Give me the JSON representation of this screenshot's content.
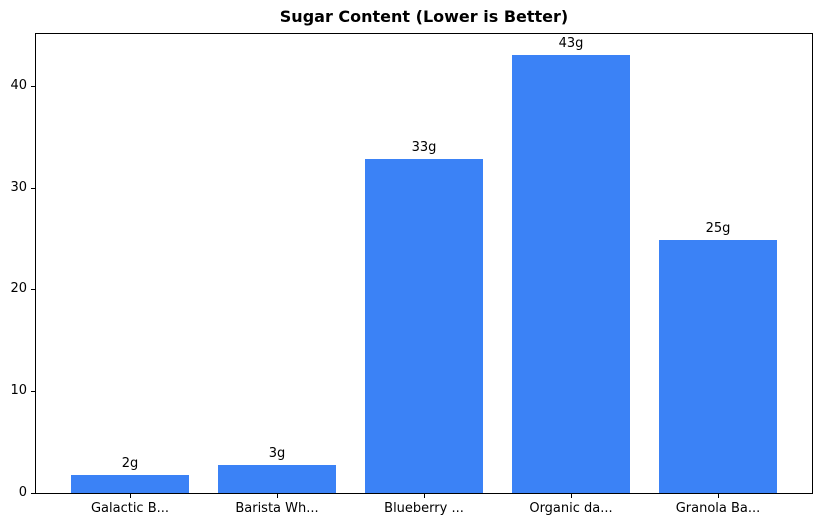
{
  "chart_data": {
    "type": "bar",
    "title": "Sugar Content (Lower is Better)",
    "categories": [
      "Galactic B...",
      "Barista Wh...",
      "Blueberry ...",
      "Organic da...",
      "Granola Ba..."
    ],
    "values": [
      1.8,
      2.8,
      32.8,
      43,
      24.9
    ],
    "bar_labels": [
      "2g",
      "3g",
      "33g",
      "43g",
      "25g"
    ],
    "xlabel": "",
    "ylabel": "",
    "ylim": [
      0,
      45.1
    ],
    "yticks": [
      0,
      10,
      20,
      30,
      40
    ],
    "bar_color": "#3b82f6",
    "axis_color": "#000000",
    "text_color": "#000000",
    "background_color": "#ffffff",
    "grid": false,
    "legend_position": "none",
    "bar_width_fraction": 0.8
  }
}
